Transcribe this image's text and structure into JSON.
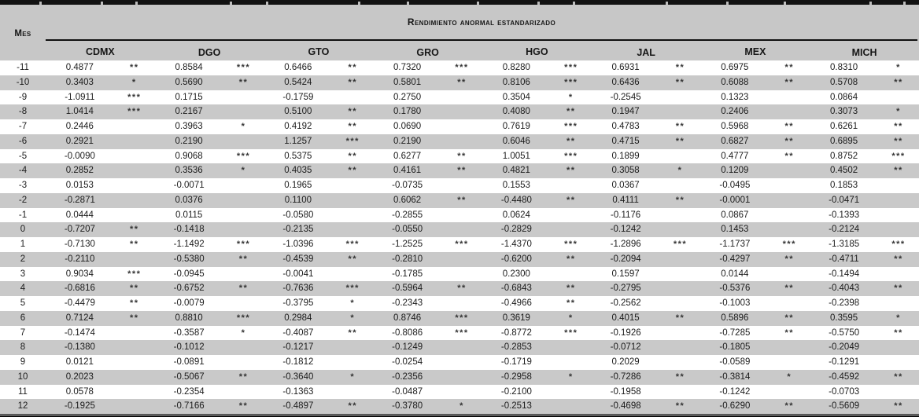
{
  "table": {
    "title": "Rendimiento anormal estandarizado",
    "mes_label": "Mes",
    "states": [
      "CDMX",
      "DGO",
      "GTO",
      "GRO",
      "HGO",
      "JAL",
      "MEX",
      "MICH"
    ],
    "rows": [
      {
        "mes": "-11",
        "cells": [
          [
            "0.4877",
            "**"
          ],
          [
            "0.8584",
            "***"
          ],
          [
            "0.6466",
            "**"
          ],
          [
            "0.7320",
            "***"
          ],
          [
            "0.8280",
            "***"
          ],
          [
            "0.6931",
            "**"
          ],
          [
            "0.6975",
            "**"
          ],
          [
            "0.8310",
            "*"
          ]
        ]
      },
      {
        "mes": "-10",
        "cells": [
          [
            "0.3403",
            "*"
          ],
          [
            "0.5690",
            "**"
          ],
          [
            "0.5424",
            "**"
          ],
          [
            "0.5801",
            "**"
          ],
          [
            "0.8106",
            "***"
          ],
          [
            "0.6436",
            "**"
          ],
          [
            "0.6088",
            "**"
          ],
          [
            "0.5708",
            "**"
          ]
        ]
      },
      {
        "mes": "-9",
        "cells": [
          [
            "-1.0911",
            "***"
          ],
          [
            "0.1715",
            ""
          ],
          [
            "-0.1759",
            ""
          ],
          [
            "0.2750",
            ""
          ],
          [
            "0.3504",
            "*"
          ],
          [
            "-0.2545",
            ""
          ],
          [
            "0.1323",
            ""
          ],
          [
            "0.0864",
            ""
          ]
        ]
      },
      {
        "mes": "-8",
        "cells": [
          [
            "1.0414",
            "***"
          ],
          [
            "0.2167",
            ""
          ],
          [
            "0.5100",
            "**"
          ],
          [
            "0.1780",
            ""
          ],
          [
            "0.4080",
            "**"
          ],
          [
            "0.1947",
            ""
          ],
          [
            "0.2406",
            ""
          ],
          [
            "0.3073",
            "*"
          ]
        ]
      },
      {
        "mes": "-7",
        "cells": [
          [
            "0.2446",
            ""
          ],
          [
            "0.3963",
            "*"
          ],
          [
            "0.4192",
            "**"
          ],
          [
            "0.0690",
            ""
          ],
          [
            "0.7619",
            "***"
          ],
          [
            "0.4783",
            "**"
          ],
          [
            "0.5968",
            "**"
          ],
          [
            "0.6261",
            "**"
          ]
        ]
      },
      {
        "mes": "-6",
        "cells": [
          [
            "0.2921",
            ""
          ],
          [
            "0.2190",
            ""
          ],
          [
            "1.1257",
            "***"
          ],
          [
            "0.2190",
            ""
          ],
          [
            "0.6046",
            "**"
          ],
          [
            "0.4715",
            "**"
          ],
          [
            "0.6827",
            "**"
          ],
          [
            "0.6895",
            "**"
          ]
        ]
      },
      {
        "mes": "-5",
        "cells": [
          [
            "-0.0090",
            ""
          ],
          [
            "0.9068",
            "***"
          ],
          [
            "0.5375",
            "**"
          ],
          [
            "0.6277",
            "**"
          ],
          [
            "1.0051",
            "***"
          ],
          [
            "0.1899",
            ""
          ],
          [
            "0.4777",
            "**"
          ],
          [
            "0.8752",
            "***"
          ]
        ]
      },
      {
        "mes": "-4",
        "cells": [
          [
            "0.2852",
            ""
          ],
          [
            "0.3536",
            "*"
          ],
          [
            "0.4035",
            "**"
          ],
          [
            "0.4161",
            "**"
          ],
          [
            "0.4821",
            "**"
          ],
          [
            "0.3058",
            "*"
          ],
          [
            "0.1209",
            ""
          ],
          [
            "0.4502",
            "**"
          ]
        ]
      },
      {
        "mes": "-3",
        "cells": [
          [
            "0.0153",
            ""
          ],
          [
            "-0.0071",
            ""
          ],
          [
            "0.1965",
            ""
          ],
          [
            "-0.0735",
            ""
          ],
          [
            "0.1553",
            ""
          ],
          [
            "0.0367",
            ""
          ],
          [
            "-0.0495",
            ""
          ],
          [
            "0.1853",
            ""
          ]
        ]
      },
      {
        "mes": "-2",
        "cells": [
          [
            "-0.2871",
            ""
          ],
          [
            "0.0376",
            ""
          ],
          [
            "0.1100",
            ""
          ],
          [
            "0.6062",
            "**"
          ],
          [
            "-0.4480",
            "**"
          ],
          [
            "0.4111",
            "**"
          ],
          [
            "-0.0001",
            ""
          ],
          [
            "-0.0471",
            ""
          ]
        ]
      },
      {
        "mes": "-1",
        "cells": [
          [
            "0.0444",
            ""
          ],
          [
            "0.0115",
            ""
          ],
          [
            "-0.0580",
            ""
          ],
          [
            "-0.2855",
            ""
          ],
          [
            "0.0624",
            ""
          ],
          [
            "-0.1176",
            ""
          ],
          [
            "0.0867",
            ""
          ],
          [
            "-0.1393",
            ""
          ]
        ]
      },
      {
        "mes": "0",
        "cells": [
          [
            "-0.7207",
            "**"
          ],
          [
            "-0.1418",
            ""
          ],
          [
            "-0.2135",
            ""
          ],
          [
            "-0.0550",
            ""
          ],
          [
            "-0.2829",
            ""
          ],
          [
            "-0.1242",
            ""
          ],
          [
            "0.1453",
            ""
          ],
          [
            "-0.2124",
            ""
          ]
        ]
      },
      {
        "mes": "1",
        "cells": [
          [
            "-0.7130",
            "**"
          ],
          [
            "-1.1492",
            "***"
          ],
          [
            "-1.0396",
            "***"
          ],
          [
            "-1.2525",
            "***"
          ],
          [
            "-1.4370",
            "***"
          ],
          [
            "-1.2896",
            "***"
          ],
          [
            "-1.1737",
            "***"
          ],
          [
            "-1.3185",
            "***"
          ]
        ]
      },
      {
        "mes": "2",
        "cells": [
          [
            "-0.2110",
            ""
          ],
          [
            "-0.5380",
            "**"
          ],
          [
            "-0.4539",
            "**"
          ],
          [
            "-0.2810",
            ""
          ],
          [
            "-0.6200",
            "**"
          ],
          [
            "-0.2094",
            ""
          ],
          [
            "-0.4297",
            "**"
          ],
          [
            "-0.4711",
            "**"
          ]
        ]
      },
      {
        "mes": "3",
        "cells": [
          [
            "0.9034",
            "***"
          ],
          [
            "-0.0945",
            ""
          ],
          [
            "-0.0041",
            ""
          ],
          [
            "-0.1785",
            ""
          ],
          [
            "0.2300",
            ""
          ],
          [
            "0.1597",
            ""
          ],
          [
            "0.0144",
            ""
          ],
          [
            "-0.1494",
            ""
          ]
        ]
      },
      {
        "mes": "4",
        "cells": [
          [
            "-0.6816",
            "**"
          ],
          [
            "-0.6752",
            "**"
          ],
          [
            "-0.7636",
            "***"
          ],
          [
            "-0.5964",
            "**"
          ],
          [
            "-0.6843",
            "**"
          ],
          [
            "-0.2795",
            ""
          ],
          [
            "-0.5376",
            "**"
          ],
          [
            "-0.4043",
            "**"
          ]
        ]
      },
      {
        "mes": "5",
        "cells": [
          [
            "-0.4479",
            "**"
          ],
          [
            "-0.0079",
            ""
          ],
          [
            "-0.3795",
            "*"
          ],
          [
            "-0.2343",
            ""
          ],
          [
            "-0.4966",
            "**"
          ],
          [
            "-0.2562",
            ""
          ],
          [
            "-0.1003",
            ""
          ],
          [
            "-0.2398",
            ""
          ]
        ]
      },
      {
        "mes": "6",
        "cells": [
          [
            "0.7124",
            "**"
          ],
          [
            "0.8810",
            "***"
          ],
          [
            "0.2984",
            "*"
          ],
          [
            "0.8746",
            "***"
          ],
          [
            "0.3619",
            "*"
          ],
          [
            "0.4015",
            "**"
          ],
          [
            "0.5896",
            "**"
          ],
          [
            "0.3595",
            "*"
          ]
        ]
      },
      {
        "mes": "7",
        "cells": [
          [
            "-0.1474",
            ""
          ],
          [
            "-0.3587",
            "*"
          ],
          [
            "-0.4087",
            "**"
          ],
          [
            "-0.8086",
            "***"
          ],
          [
            "-0.8772",
            "***"
          ],
          [
            "-0.1926",
            ""
          ],
          [
            "-0.7285",
            "**"
          ],
          [
            "-0.5750",
            "**"
          ]
        ]
      },
      {
        "mes": "8",
        "cells": [
          [
            "-0.1380",
            ""
          ],
          [
            "-0.1012",
            ""
          ],
          [
            "-0.1217",
            ""
          ],
          [
            "-0.1249",
            ""
          ],
          [
            "-0.2853",
            ""
          ],
          [
            "-0.0712",
            ""
          ],
          [
            "-0.1805",
            ""
          ],
          [
            "-0.2049",
            ""
          ]
        ]
      },
      {
        "mes": "9",
        "cells": [
          [
            "0.0121",
            ""
          ],
          [
            "-0.0891",
            ""
          ],
          [
            "-0.1812",
            ""
          ],
          [
            "-0.0254",
            ""
          ],
          [
            "-0.1719",
            ""
          ],
          [
            "0.2029",
            ""
          ],
          [
            "-0.0589",
            ""
          ],
          [
            "-0.1291",
            ""
          ]
        ]
      },
      {
        "mes": "10",
        "cells": [
          [
            "0.2023",
            ""
          ],
          [
            "-0.5067",
            "**"
          ],
          [
            "-0.3640",
            "*"
          ],
          [
            "-0.2356",
            ""
          ],
          [
            "-0.2958",
            "*"
          ],
          [
            "-0.7286",
            "**"
          ],
          [
            "-0.3814",
            "*"
          ],
          [
            "-0.4592",
            "**"
          ]
        ]
      },
      {
        "mes": "11",
        "cells": [
          [
            "0.0578",
            ""
          ],
          [
            "-0.2354",
            ""
          ],
          [
            "-0.1363",
            ""
          ],
          [
            "-0.0487",
            ""
          ],
          [
            "-0.2100",
            ""
          ],
          [
            "-0.1958",
            ""
          ],
          [
            "-0.1242",
            ""
          ],
          [
            "-0.0703",
            ""
          ]
        ]
      },
      {
        "mes": "12",
        "cells": [
          [
            "-0.1925",
            ""
          ],
          [
            "-0.7166",
            "**"
          ],
          [
            "-0.4897",
            "**"
          ],
          [
            "-0.3780",
            "*"
          ],
          [
            "-0.2513",
            ""
          ],
          [
            "-0.4698",
            "**"
          ],
          [
            "-0.6290",
            "**"
          ],
          [
            "-0.5609",
            "**"
          ]
        ]
      }
    ]
  },
  "colors": {
    "row_stripe": "#c9c9c9",
    "header_bg": "#c7c7c7",
    "rule_black": "#121212",
    "text": "#1c1c1c"
  }
}
